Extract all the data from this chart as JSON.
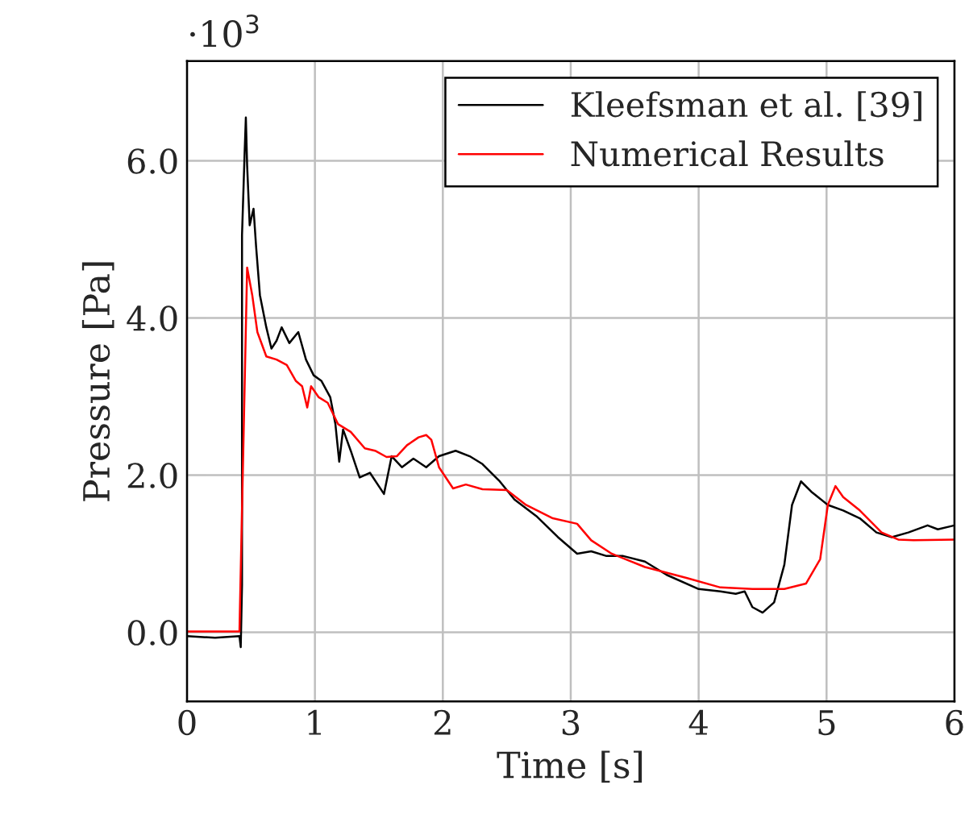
{
  "chart_data": {
    "type": "line",
    "xlabel": "Time [s]",
    "ylabel": "Pressure [Pa]",
    "annotations": [
      "·10$^{3}$"
    ],
    "xlim": [
      0,
      6
    ],
    "ylim": [
      -0.88,
      7.27
    ],
    "xticks": [
      0,
      1,
      2,
      3,
      4,
      5,
      6
    ],
    "yticks": [
      {
        "value": 0,
        "label": "0.0"
      },
      {
        "value": 2,
        "label": "2.0"
      },
      {
        "value": 4,
        "label": "4.0"
      },
      {
        "value": 6,
        "label": "6.0"
      }
    ],
    "grid": true,
    "legend": "top right",
    "marker": "none",
    "line_style": "solid",
    "series": [
      {
        "name": "Kleefsman et al. [39]",
        "color": "#000000",
        "x": [
          0,
          0.22,
          0.41,
          0.42,
          0.43,
          0.43,
          0.45,
          0.46,
          0.47,
          0.49,
          0.52,
          0.54,
          0.57,
          0.62,
          0.66,
          0.7,
          0.74,
          0.8,
          0.87,
          0.93,
          0.99,
          1.05,
          1.12,
          1.16,
          1.19,
          1.22,
          1.28,
          1.35,
          1.43,
          1.54,
          1.6,
          1.68,
          1.77,
          1.87,
          1.97,
          2.1,
          2.21,
          2.31,
          2.44,
          2.56,
          2.73,
          2.9,
          3.05,
          3.16,
          3.28,
          3.41,
          3.58,
          3.75,
          4.0,
          4.17,
          4.29,
          4.36,
          4.42,
          4.5,
          4.59,
          4.67,
          4.73,
          4.8,
          4.88,
          5.01,
          5.13,
          5.26,
          5.39,
          5.51,
          5.64,
          5.79,
          5.87,
          6.0
        ],
        "values": [
          -0.05,
          -0.07,
          -0.05,
          -0.19,
          0.6,
          5.05,
          6.08,
          6.55,
          5.94,
          5.18,
          5.39,
          4.91,
          4.29,
          3.88,
          3.61,
          3.71,
          3.88,
          3.68,
          3.82,
          3.47,
          3.27,
          3.2,
          2.99,
          2.65,
          2.17,
          2.58,
          2.31,
          1.97,
          2.03,
          1.76,
          2.24,
          2.1,
          2.21,
          2.1,
          2.24,
          2.31,
          2.24,
          2.14,
          1.93,
          1.69,
          1.48,
          1.21,
          1.0,
          1.03,
          0.97,
          0.97,
          0.9,
          0.73,
          0.55,
          0.52,
          0.49,
          0.52,
          0.32,
          0.25,
          0.38,
          0.86,
          1.62,
          1.92,
          1.79,
          1.62,
          1.55,
          1.45,
          1.27,
          1.21,
          1.27,
          1.36,
          1.31,
          1.36
        ]
      },
      {
        "name": "Numerical Results",
        "color": "#ff0000",
        "x": [
          0,
          0.41,
          0.47,
          0.51,
          0.55,
          0.62,
          0.7,
          0.78,
          0.85,
          0.9,
          0.94,
          0.97,
          1.03,
          1.1,
          1.18,
          1.28,
          1.39,
          1.47,
          1.56,
          1.64,
          1.72,
          1.81,
          1.87,
          1.91,
          1.97,
          2.08,
          2.18,
          2.31,
          2.5,
          2.65,
          2.86,
          3.05,
          3.16,
          3.32,
          3.58,
          3.91,
          4.17,
          4.42,
          4.67,
          4.84,
          4.95,
          5.01,
          5.07,
          5.13,
          5.26,
          5.43,
          5.56,
          5.68,
          6.0
        ],
        "values": [
          0.01,
          0.01,
          4.64,
          4.29,
          3.82,
          3.51,
          3.47,
          3.4,
          3.2,
          3.13,
          2.86,
          3.13,
          2.99,
          2.92,
          2.65,
          2.55,
          2.34,
          2.31,
          2.23,
          2.24,
          2.38,
          2.48,
          2.51,
          2.45,
          2.1,
          1.83,
          1.88,
          1.82,
          1.81,
          1.62,
          1.45,
          1.38,
          1.17,
          1.0,
          0.83,
          0.69,
          0.57,
          0.55,
          0.55,
          0.62,
          0.93,
          1.62,
          1.86,
          1.72,
          1.55,
          1.27,
          1.18,
          1.17,
          1.18
        ]
      }
    ]
  }
}
